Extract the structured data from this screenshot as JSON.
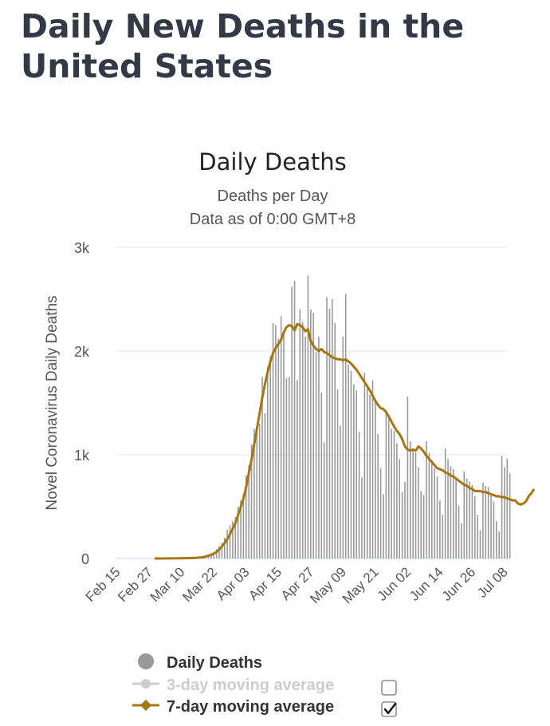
{
  "page": {
    "title": "Daily New Deaths in the United States"
  },
  "chart_data": {
    "type": "bar",
    "title": "Daily Deaths",
    "subtitle_lines": [
      "Deaths per Day",
      "Data as of 0:00 GMT+8"
    ],
    "ylabel": "Novel Coronavirus Daily Deaths",
    "xlabel": "",
    "ylim": [
      0,
      3000
    ],
    "yticks": [
      {
        "value": 0,
        "label": "0"
      },
      {
        "value": 1000,
        "label": "1k"
      },
      {
        "value": 2000,
        "label": "2k"
      },
      {
        "value": 3000,
        "label": "3k"
      }
    ],
    "grid": true,
    "start_date": "Feb 15",
    "xtick_labels": [
      "Feb 15",
      "Feb 27",
      "Mar 10",
      "Mar 22",
      "Apr 03",
      "Apr 15",
      "Apr 27",
      "May 09",
      "May 21",
      "Jun 02",
      "Jun 14",
      "Jun 26",
      "Jul 08"
    ],
    "series": [
      {
        "name": "Daily Deaths",
        "color": "#999999",
        "values": [
          0,
          0,
          0,
          0,
          0,
          0,
          0,
          0,
          0,
          0,
          0,
          0,
          0,
          0,
          1,
          0,
          0,
          0,
          1,
          0,
          0,
          1,
          1,
          1,
          2,
          3,
          2,
          4,
          5,
          8,
          10,
          12,
          10,
          20,
          40,
          50,
          60,
          90,
          120,
          150,
          200,
          280,
          320,
          360,
          400,
          500,
          560,
          620,
          800,
          900,
          1100,
          1250,
          1270,
          1300,
          1750,
          1400,
          1850,
          1950,
          2270,
          2250,
          2120,
          2340,
          2200,
          1740,
          1750,
          2620,
          2680,
          1720,
          2400,
          2280,
          2140,
          2730,
          2400,
          2370,
          1990,
          2140,
          1600,
          1120,
          2520,
          2410,
          2500,
          2270,
          1630,
          1280,
          2140,
          2550,
          1870,
          1810,
          1680,
          1620,
          1220,
          780,
          1790,
          1640,
          1580,
          1720,
          1510,
          1200,
          870,
          620,
          1430,
          1350,
          1250,
          1230,
          1110,
          960,
          640,
          740,
          1560,
          1130,
          1060,
          1020,
          880,
          650,
          610,
          1130,
          1020,
          940,
          870,
          790,
          560,
          420,
          1060,
          960,
          890,
          860,
          760,
          510,
          340,
          840,
          770,
          740,
          710,
          600,
          420,
          270,
          730,
          700,
          690,
          620,
          550,
          360,
          260,
          990,
          880,
          960,
          820
        ]
      },
      {
        "name": "7-day moving average",
        "color": "#a67613",
        "start_index": 14,
        "values": [
          0,
          0,
          0,
          0,
          0,
          1,
          1,
          1,
          1,
          2,
          2,
          3,
          3,
          4,
          5,
          6,
          7,
          9,
          13,
          19,
          26,
          35,
          48,
          62,
          86,
          117,
          149,
          186,
          234,
          286,
          340,
          417,
          495,
          578,
          690,
          820,
          950,
          1100,
          1250,
          1400,
          1550,
          1680,
          1800,
          1900,
          1980,
          2030,
          2070,
          2110,
          2180,
          2230,
          2250,
          2240,
          2200,
          2260,
          2250,
          2230,
          2190,
          2210,
          2100,
          2050,
          2020,
          2000,
          2020,
          1990,
          1980,
          1960,
          1940,
          1930,
          1920,
          1920,
          1910,
          1920,
          1900,
          1880,
          1850,
          1820,
          1780,
          1740,
          1700,
          1660,
          1620,
          1570,
          1520,
          1480,
          1450,
          1440,
          1410,
          1370,
          1320,
          1270,
          1230,
          1200,
          1150,
          1080,
          1050,
          1040,
          1050,
          1040,
          1080,
          1060,
          1030,
          990,
          960,
          930,
          900,
          870,
          860,
          850,
          830,
          820,
          800,
          790,
          770,
          750,
          730,
          710,
          700,
          680,
          670,
          650,
          650,
          650,
          640,
          640,
          630,
          620,
          610,
          600,
          600,
          590,
          590,
          580,
          570,
          560,
          560,
          530,
          520,
          530,
          550,
          600,
          630,
          670
        ]
      }
    ],
    "legend": {
      "position": "bottom",
      "items": [
        {
          "label": "Daily Deaths",
          "color": "#999999",
          "label_color": "#333333",
          "symbol": "circle"
        },
        {
          "label": "3-day moving average",
          "color": "#cccccc",
          "label_color": "#cccccc",
          "symbol": "circle-line",
          "checkbox": false
        },
        {
          "label": "7-day moving average",
          "color": "#a67613",
          "label_color": "#333333",
          "symbol": "diamond-line",
          "checkbox": true
        }
      ]
    }
  }
}
